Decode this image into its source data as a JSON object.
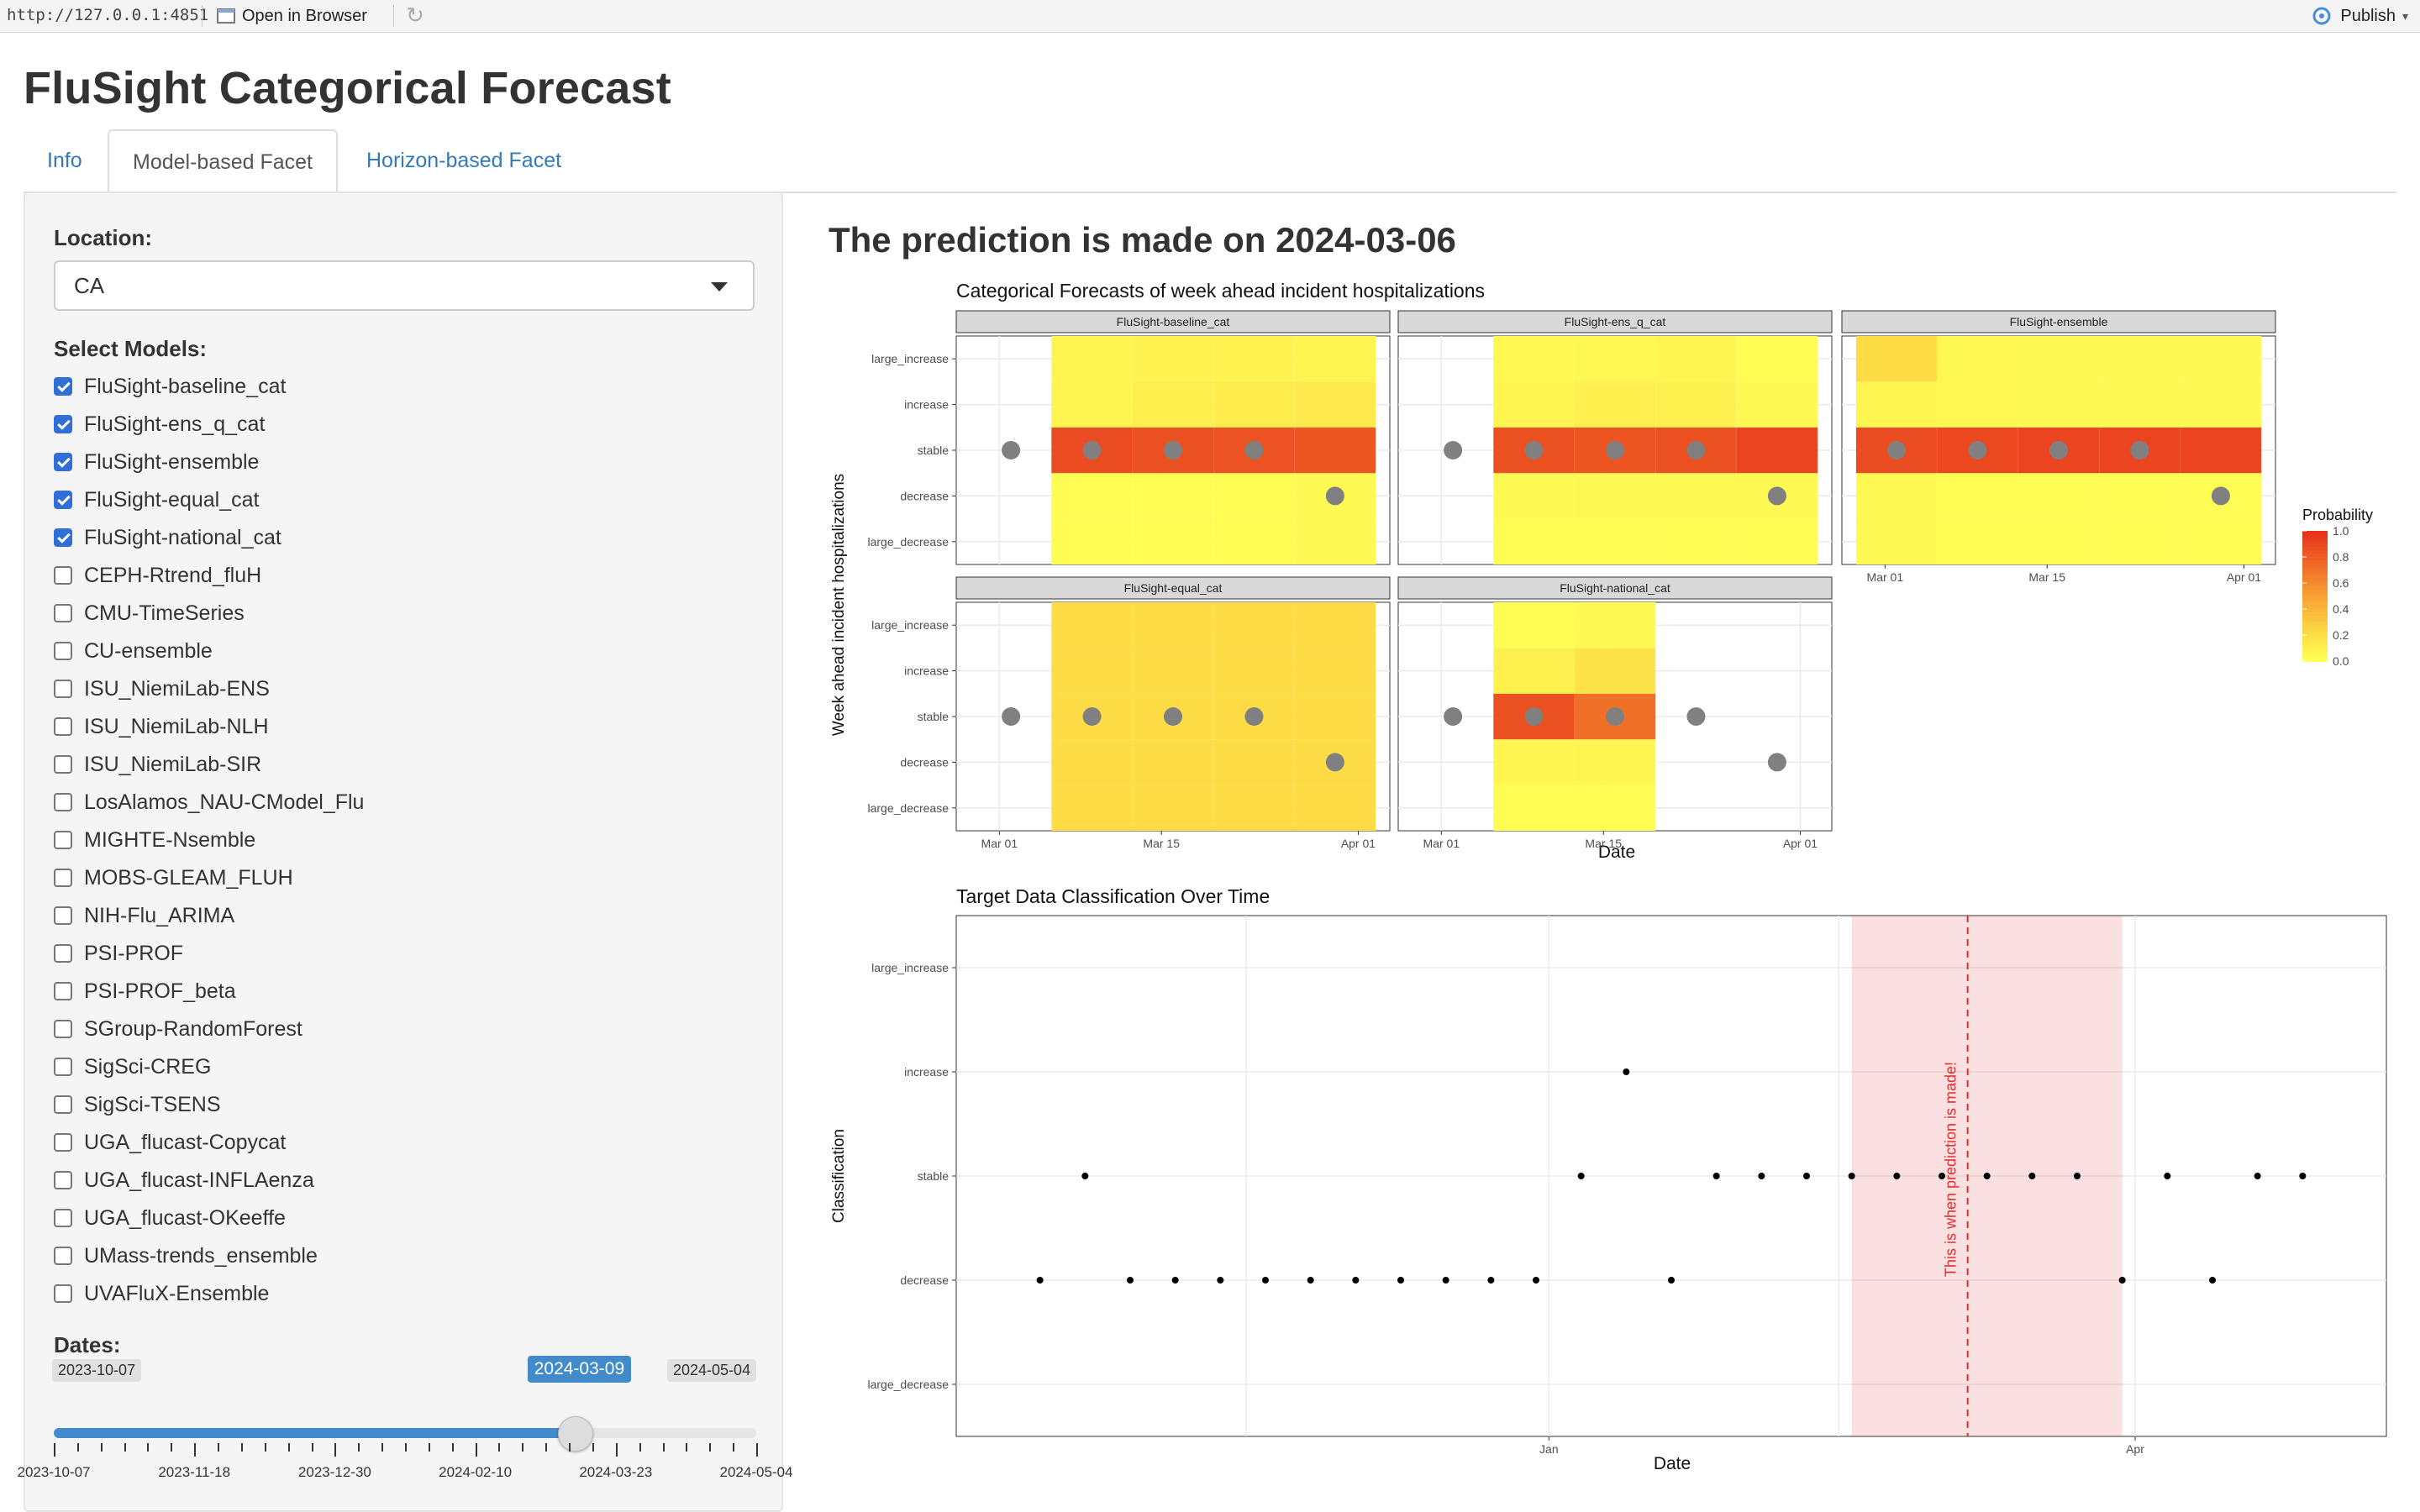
{
  "browser": {
    "url": "http://127.0.0.1:4851",
    "open_in_browser": "Open in Browser",
    "publish": "Publish"
  },
  "app_title": "FluSight Categorical Forecast",
  "tabs": [
    {
      "label": "Info",
      "active": false
    },
    {
      "label": "Model-based Facet",
      "active": true
    },
    {
      "label": "Horizon-based Facet",
      "active": false
    }
  ],
  "sidebar": {
    "location_label": "Location:",
    "location_value": "CA",
    "models_label": "Select Models:",
    "models": [
      {
        "name": "FluSight-baseline_cat",
        "checked": true
      },
      {
        "name": "FluSight-ens_q_cat",
        "checked": true
      },
      {
        "name": "FluSight-ensemble",
        "checked": true
      },
      {
        "name": "FluSight-equal_cat",
        "checked": true
      },
      {
        "name": "FluSight-national_cat",
        "checked": true
      },
      {
        "name": "CEPH-Rtrend_fluH",
        "checked": false
      },
      {
        "name": "CMU-TimeSeries",
        "checked": false
      },
      {
        "name": "CU-ensemble",
        "checked": false
      },
      {
        "name": "ISU_NiemiLab-ENS",
        "checked": false
      },
      {
        "name": "ISU_NiemiLab-NLH",
        "checked": false
      },
      {
        "name": "ISU_NiemiLab-SIR",
        "checked": false
      },
      {
        "name": "LosAlamos_NAU-CModel_Flu",
        "checked": false
      },
      {
        "name": "MIGHTE-Nsemble",
        "checked": false
      },
      {
        "name": "MOBS-GLEAM_FLUH",
        "checked": false
      },
      {
        "name": "NIH-Flu_ARIMA",
        "checked": false
      },
      {
        "name": "PSI-PROF",
        "checked": false
      },
      {
        "name": "PSI-PROF_beta",
        "checked": false
      },
      {
        "name": "SGroup-RandomForest",
        "checked": false
      },
      {
        "name": "SigSci-CREG",
        "checked": false
      },
      {
        "name": "SigSci-TSENS",
        "checked": false
      },
      {
        "name": "UGA_flucast-Copycat",
        "checked": false
      },
      {
        "name": "UGA_flucast-INFLAenza",
        "checked": false
      },
      {
        "name": "UGA_flucast-OKeeffe",
        "checked": false
      },
      {
        "name": "UMass-trends_ensemble",
        "checked": false
      },
      {
        "name": "UVAFluX-Ensemble",
        "checked": false
      }
    ],
    "dates_label": "Dates:",
    "slider": {
      "min": "2023-10-07",
      "max": "2024-05-04",
      "value": "2024-03-09",
      "value_fraction": 0.7413,
      "tick_labels": [
        "2023-10-07",
        "2023-11-18",
        "2023-12-30",
        "2024-02-10",
        "2024-03-23",
        "2024-05-04"
      ]
    }
  },
  "prediction_heading": "The prediction is made on 2024-03-06",
  "chart_data": [
    {
      "type": "heatmap",
      "title": "Categorical Forecasts of week ahead incident hospitalizations",
      "xlabel": "Date",
      "ylabel": "Week ahead incident hospitalizations",
      "categories": [
        "large_decrease",
        "decrease",
        "stable",
        "increase",
        "large_increase"
      ],
      "x_ticks": [
        "Mar 01",
        "Mar 15",
        "Apr 01"
      ],
      "x_tick_dates": [
        "2024-03-01",
        "2024-03-15",
        "2024-04-01"
      ],
      "x_range": [
        "2024-02-27",
        "2024-04-03"
      ],
      "legend": {
        "title": "Probability",
        "ticks": [
          "0.0",
          "0.2",
          "0.4",
          "0.6",
          "0.8",
          "1.0"
        ],
        "low_color": "#ffff55",
        "high_color": "#e8321c",
        "position": "right"
      },
      "observed_dates": [
        "2024-03-02",
        "2024-03-09",
        "2024-03-16",
        "2024-03-23",
        "2024-03-30"
      ],
      "observed_categories": [
        "stable",
        "stable",
        "stable",
        "stable",
        "decrease"
      ],
      "facets": [
        {
          "name": "FluSight-baseline_cat",
          "weeks": [
            "2024-03-09",
            "2024-03-16",
            "2024-03-23",
            "2024-03-30"
          ],
          "probabilities": {
            "large_decrease": [
              0.02,
              0.02,
              0.02,
              0.03
            ],
            "decrease": [
              0.02,
              0.02,
              0.02,
              0.03
            ],
            "stable": [
              0.88,
              0.86,
              0.85,
              0.84
            ],
            "increase": [
              0.06,
              0.09,
              0.11,
              0.12
            ],
            "large_increase": [
              0.05,
              0.07,
              0.07,
              0.06
            ]
          }
        },
        {
          "name": "FluSight-ens_q_cat",
          "weeks": [
            "2024-03-09",
            "2024-03-16",
            "2024-03-23",
            "2024-03-30"
          ],
          "probabilities": {
            "large_decrease": [
              0.02,
              0.02,
              0.02,
              0.02
            ],
            "decrease": [
              0.03,
              0.03,
              0.03,
              0.03
            ],
            "stable": [
              0.86,
              0.84,
              0.86,
              0.92
            ],
            "increase": [
              0.05,
              0.09,
              0.08,
              0.03
            ],
            "large_increase": [
              0.04,
              0.04,
              0.05,
              0.02
            ]
          }
        },
        {
          "name": "FluSight-ensemble",
          "weeks": [
            "2024-03-02",
            "2024-03-09",
            "2024-03-16",
            "2024-03-23",
            "2024-03-30"
          ],
          "probabilities": {
            "large_decrease": [
              0.03,
              0.02,
              0.02,
              0.02,
              0.02
            ],
            "decrease": [
              0.03,
              0.02,
              0.02,
              0.02,
              0.02
            ],
            "stable": [
              0.88,
              0.9,
              0.92,
              0.92,
              0.92
            ],
            "increase": [
              0.05,
              0.04,
              0.03,
              0.03,
              0.03
            ],
            "large_increase": [
              0.2,
              0.04,
              0.03,
              0.03,
              0.03
            ]
          }
        },
        {
          "name": "FluSight-equal_cat",
          "weeks": [
            "2024-03-09",
            "2024-03-16",
            "2024-03-23",
            "2024-03-30"
          ],
          "probabilities": {
            "large_decrease": [
              0.2,
              0.2,
              0.2,
              0.2
            ],
            "decrease": [
              0.2,
              0.2,
              0.2,
              0.2
            ],
            "stable": [
              0.2,
              0.2,
              0.2,
              0.2
            ],
            "increase": [
              0.2,
              0.2,
              0.2,
              0.2
            ],
            "large_increase": [
              0.2,
              0.2,
              0.2,
              0.2
            ]
          }
        },
        {
          "name": "FluSight-national_cat",
          "weeks": [
            "2024-03-09",
            "2024-03-16"
          ],
          "probabilities": {
            "large_decrease": [
              0.02,
              0.02
            ],
            "decrease": [
              0.05,
              0.05
            ],
            "stable": [
              0.86,
              0.72
            ],
            "increase": [
              0.08,
              0.16
            ],
            "large_increase": [
              0.02,
              0.03
            ]
          }
        }
      ]
    },
    {
      "type": "scatter",
      "title": "Target Data Classification Over Time",
      "xlabel": "Date",
      "ylabel": "Classification",
      "categories": [
        "large_decrease",
        "decrease",
        "stable",
        "increase",
        "large_increase"
      ],
      "x_ticks": [
        "Jan",
        "Apr"
      ],
      "x_tick_dates": [
        "2024-01-01",
        "2024-04-01"
      ],
      "x_range": [
        "2023-10-01",
        "2024-05-10"
      ],
      "annotation": {
        "text": "This is when prediction is made!",
        "date": "2024-03-06",
        "band": [
          "2024-02-17",
          "2024-03-30"
        ],
        "color": "#e03030"
      },
      "points": [
        {
          "x": "2023-10-14",
          "y": "decrease"
        },
        {
          "x": "2023-10-21",
          "y": "stable"
        },
        {
          "x": "2023-10-28",
          "y": "decrease"
        },
        {
          "x": "2023-11-04",
          "y": "decrease"
        },
        {
          "x": "2023-11-11",
          "y": "decrease"
        },
        {
          "x": "2023-11-18",
          "y": "decrease"
        },
        {
          "x": "2023-11-25",
          "y": "decrease"
        },
        {
          "x": "2023-12-02",
          "y": "decrease"
        },
        {
          "x": "2023-12-09",
          "y": "decrease"
        },
        {
          "x": "2023-12-16",
          "y": "decrease"
        },
        {
          "x": "2023-12-23",
          "y": "decrease"
        },
        {
          "x": "2023-12-30",
          "y": "decrease"
        },
        {
          "x": "2024-01-06",
          "y": "stable"
        },
        {
          "x": "2024-01-13",
          "y": "increase"
        },
        {
          "x": "2024-01-20",
          "y": "decrease"
        },
        {
          "x": "2024-01-27",
          "y": "stable"
        },
        {
          "x": "2024-02-03",
          "y": "stable"
        },
        {
          "x": "2024-02-10",
          "y": "stable"
        },
        {
          "x": "2024-02-17",
          "y": "stable"
        },
        {
          "x": "2024-02-24",
          "y": "stable"
        },
        {
          "x": "2024-03-02",
          "y": "stable"
        },
        {
          "x": "2024-03-09",
          "y": "stable"
        },
        {
          "x": "2024-03-16",
          "y": "stable"
        },
        {
          "x": "2024-03-23",
          "y": "stable"
        },
        {
          "x": "2024-03-30",
          "y": "decrease"
        },
        {
          "x": "2024-04-06",
          "y": "stable"
        },
        {
          "x": "2024-04-13",
          "y": "decrease"
        },
        {
          "x": "2024-04-20",
          "y": "stable"
        },
        {
          "x": "2024-04-27",
          "y": "stable"
        }
      ]
    }
  ]
}
